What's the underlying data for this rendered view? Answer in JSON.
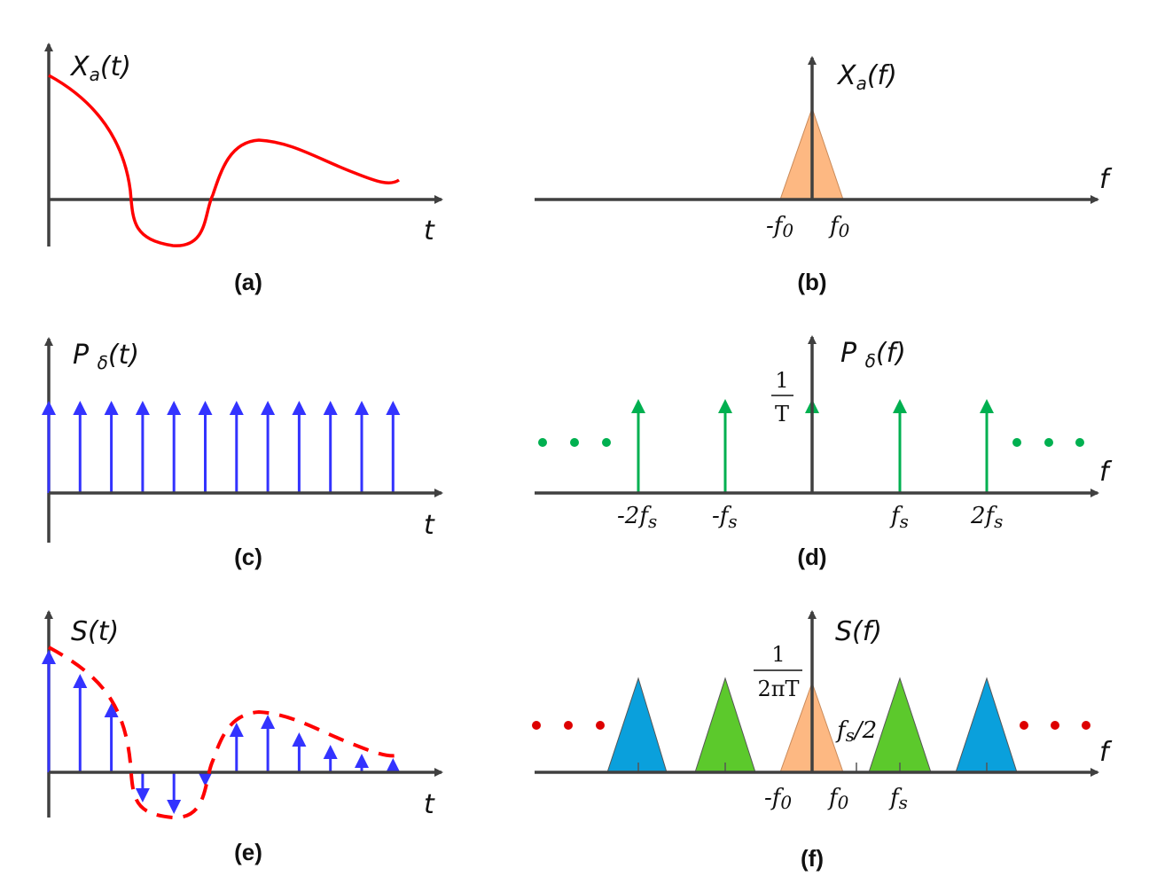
{
  "colors": {
    "axis": "#404040",
    "signal": "#ff0000",
    "impulse_blue": "#3333ff",
    "impulse_green": "#00b050",
    "baseband": "#fdb882",
    "image_green": "#5cc92c",
    "image_blue": "#0aa0dc",
    "dots_red": "#dd0000"
  },
  "panels": {
    "a": {
      "caption": "(a)",
      "ylabel": {
        "main": "X",
        "sub": "a",
        "arg": "(t)"
      },
      "xlabel": "t"
    },
    "b": {
      "caption": "(b)",
      "ylabel": {
        "main": "X",
        "sub": "a",
        "arg": "(f)"
      },
      "xlabel": "f",
      "ticks": [
        {
          "main": "-f",
          "sub": "0"
        },
        {
          "main": "f",
          "sub": "0"
        }
      ]
    },
    "c": {
      "caption": "(c)",
      "ylabel": {
        "main": "P ",
        "sub": "δ",
        "arg": "(t)"
      },
      "xlabel": "t",
      "impulse_count": 12
    },
    "d": {
      "caption": "(d)",
      "ylabel": {
        "main": "P ",
        "sub": "δ",
        "arg": "(f)"
      },
      "xlabel": "f",
      "height_num": "1",
      "height_den": "T",
      "ticks": [
        {
          "main": "-2f",
          "sub": "s"
        },
        {
          "main": "-f",
          "sub": "s"
        },
        {
          "main": "f",
          "sub": "s"
        },
        {
          "main": "2f",
          "sub": "s"
        }
      ]
    },
    "e": {
      "caption": "(e)",
      "ylabel": {
        "main": "S(t)"
      },
      "xlabel": "t"
    },
    "f": {
      "caption": "(f)",
      "ylabel": {
        "main": "S(f)"
      },
      "xlabel": "f",
      "height_num": "1",
      "height_den": "2πT",
      "ticks": [
        {
          "main": "-f",
          "sub": "0"
        },
        {
          "main": "f",
          "sub": "0"
        },
        {
          "main": "f",
          "sub": "s"
        }
      ],
      "half_rate": {
        "main": "f",
        "sub": "s",
        "rest": "/2"
      }
    }
  }
}
